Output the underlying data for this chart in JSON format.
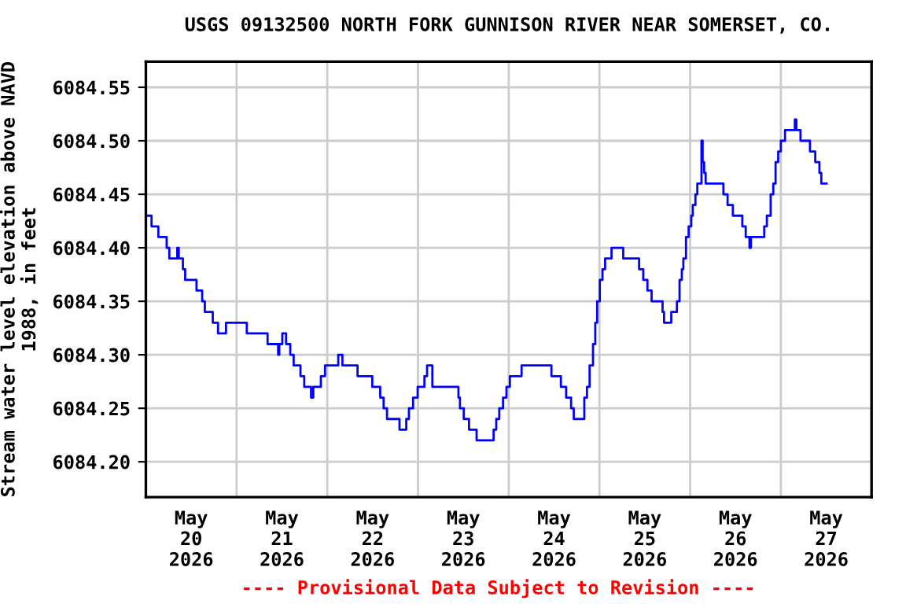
{
  "chart_data": {
    "type": "step",
    "title": "USGS 09132500 NORTH FORK GUNNISON RIVER NEAR SOMERSET, CO.",
    "ylabel": "Stream water level elevation above NAVD\n1988, in feet",
    "annotations": [
      "---- Provisional Data Subject to Revision ----"
    ],
    "grid": true,
    "legend": false,
    "xlim": [
      "2026-05-20T00:00",
      "2026-05-28T00:00"
    ],
    "xticks": [
      {
        "value": "2026-05-20T12:00",
        "label": "May\n20\n2026"
      },
      {
        "value": "2026-05-21T00:00",
        "label": null
      },
      {
        "value": "2026-05-21T12:00",
        "label": "May\n21\n2026"
      },
      {
        "value": "2026-05-22T00:00",
        "label": null
      },
      {
        "value": "2026-05-22T12:00",
        "label": "May\n22\n2026"
      },
      {
        "value": "2026-05-23T00:00",
        "label": null
      },
      {
        "value": "2026-05-23T12:00",
        "label": "May\n23\n2026"
      },
      {
        "value": "2026-05-24T00:00",
        "label": null
      },
      {
        "value": "2026-05-24T12:00",
        "label": "May\n24\n2026"
      },
      {
        "value": "2026-05-25T00:00",
        "label": null
      },
      {
        "value": "2026-05-25T12:00",
        "label": "May\n25\n2026"
      },
      {
        "value": "2026-05-26T00:00",
        "label": null
      },
      {
        "value": "2026-05-26T12:00",
        "label": "May\n26\n2026"
      },
      {
        "value": "2026-05-27T00:00",
        "label": null
      },
      {
        "value": "2026-05-27T12:00",
        "label": "May\n27\n2026"
      }
    ],
    "ylim": [
      6084.167,
      6084.574
    ],
    "yticks": [
      {
        "value": 6084.2,
        "label": "6084.20"
      },
      {
        "value": 6084.25,
        "label": "6084.25"
      },
      {
        "value": 6084.3,
        "label": "6084.30"
      },
      {
        "value": 6084.35,
        "label": "6084.35"
      },
      {
        "value": 6084.4,
        "label": "6084.40"
      },
      {
        "value": 6084.45,
        "label": "6084.45"
      },
      {
        "value": 6084.5,
        "label": "6084.50"
      },
      {
        "value": 6084.55,
        "label": "6084.55"
      }
    ],
    "series": [
      {
        "color": "#0000ff",
        "x": [
          "2026-05-20T00:00",
          "2026-05-20T01:30",
          "2026-05-20T03:18",
          "2026-05-20T05:30",
          "2026-05-20T06:12",
          "2026-05-20T08:18",
          "2026-05-20T08:42",
          "2026-05-20T09:48",
          "2026-05-20T10:24",
          "2026-05-20T13:24",
          "2026-05-20T14:54",
          "2026-05-20T15:36",
          "2026-05-20T17:42",
          "2026-05-20T19:06",
          "2026-05-20T21:12",
          "2026-05-20T21:54",
          "2026-05-21T02:42",
          "2026-05-21T03:06",
          "2026-05-21T08:12",
          "2026-05-21T11:00",
          "2026-05-21T11:18",
          "2026-05-21T12:06",
          "2026-05-21T13:06",
          "2026-05-21T14:12",
          "2026-05-21T15:06",
          "2026-05-21T16:54",
          "2026-05-21T17:54",
          "2026-05-21T19:42",
          "2026-05-21T20:18",
          "2026-05-21T22:18",
          "2026-05-21T23:24",
          "2026-05-22T02:54",
          "2026-05-22T04:00",
          "2026-05-22T08:00",
          "2026-05-22T08:24",
          "2026-05-22T11:54",
          "2026-05-22T14:00",
          "2026-05-22T14:54",
          "2026-05-22T15:48",
          "2026-05-22T19:06",
          "2026-05-22T20:54",
          "2026-05-22T21:36",
          "2026-05-22T22:42",
          "2026-05-22T23:54",
          "2026-05-23T01:42",
          "2026-05-23T02:24",
          "2026-05-23T03:48",
          "2026-05-23T10:42",
          "2026-05-23T11:06",
          "2026-05-23T12:06",
          "2026-05-23T13:30",
          "2026-05-23T15:30",
          "2026-05-23T17:12",
          "2026-05-23T20:00",
          "2026-05-23T20:42",
          "2026-05-23T21:30",
          "2026-05-23T22:30",
          "2026-05-23T23:24",
          "2026-05-24T00:18",
          "2026-05-24T01:12",
          "2026-05-24T02:48",
          "2026-05-24T03:24",
          "2026-05-24T11:18",
          "2026-05-24T13:48",
          "2026-05-24T15:12",
          "2026-05-24T16:30",
          "2026-05-24T17:12",
          "2026-05-24T19:36",
          "2026-05-24T20:00",
          "2026-05-24T20:42",
          "2026-05-24T21:24",
          "2026-05-24T22:18",
          "2026-05-24T22:54",
          "2026-05-24T23:24",
          "2026-05-25T00:06",
          "2026-05-25T00:48",
          "2026-05-25T01:30",
          "2026-05-25T03:12",
          "2026-05-25T06:18",
          "2026-05-25T09:06",
          "2026-05-25T10:30",
          "2026-05-25T11:36",
          "2026-05-25T12:42",
          "2026-05-25T13:48",
          "2026-05-25T16:42",
          "2026-05-25T17:06",
          "2026-05-25T19:00",
          "2026-05-25T20:30",
          "2026-05-25T21:12",
          "2026-05-25T21:48",
          "2026-05-25T22:12",
          "2026-05-25T22:54",
          "2026-05-25T23:36",
          "2026-05-26T00:18",
          "2026-05-26T00:42",
          "2026-05-26T01:24",
          "2026-05-26T01:54",
          "2026-05-26T03:00",
          "2026-05-26T03:18",
          "2026-05-26T03:42",
          "2026-05-26T04:06",
          "2026-05-26T08:48",
          "2026-05-26T09:54",
          "2026-05-26T11:18",
          "2026-05-26T13:48",
          "2026-05-26T14:42",
          "2026-05-26T15:42",
          "2026-05-26T16:06",
          "2026-05-26T19:36",
          "2026-05-26T20:18",
          "2026-05-26T21:18",
          "2026-05-26T22:00",
          "2026-05-26T22:36",
          "2026-05-26T23:18",
          "2026-05-27T00:00",
          "2026-05-27T01:06",
          "2026-05-27T03:42",
          "2026-05-27T04:06",
          "2026-05-27T05:12",
          "2026-05-27T07:42",
          "2026-05-27T09:06",
          "2026-05-27T10:12",
          "2026-05-27T10:42",
          "2026-05-27T12:06"
        ],
        "values": [
          6084.43,
          6084.42,
          6084.41,
          6084.4,
          6084.39,
          6084.4,
          6084.39,
          6084.38,
          6084.37,
          6084.36,
          6084.35,
          6084.34,
          6084.33,
          6084.32,
          6084.33,
          6084.33,
          6084.32,
          6084.32,
          6084.31,
          6084.3,
          6084.31,
          6084.32,
          6084.31,
          6084.3,
          6084.29,
          6084.28,
          6084.27,
          6084.26,
          6084.27,
          6084.28,
          6084.29,
          6084.3,
          6084.29,
          6084.28,
          6084.28,
          6084.27,
          6084.26,
          6084.25,
          6084.24,
          6084.23,
          6084.24,
          6084.25,
          6084.26,
          6084.27,
          6084.28,
          6084.29,
          6084.27,
          6084.26,
          6084.25,
          6084.24,
          6084.23,
          6084.22,
          6084.22,
          6084.23,
          6084.24,
          6084.25,
          6084.26,
          6084.27,
          6084.28,
          6084.28,
          6084.28,
          6084.29,
          6084.28,
          6084.27,
          6084.26,
          6084.25,
          6084.24,
          6084.24,
          6084.26,
          6084.27,
          6084.29,
          6084.31,
          6084.33,
          6084.35,
          6084.37,
          6084.38,
          6084.39,
          6084.4,
          6084.39,
          6084.39,
          6084.38,
          6084.37,
          6084.36,
          6084.35,
          6084.34,
          6084.33,
          6084.34,
          6084.35,
          6084.37,
          6084.38,
          6084.39,
          6084.41,
          6084.42,
          6084.43,
          6084.44,
          6084.45,
          6084.46,
          6084.5,
          6084.48,
          6084.47,
          6084.46,
          6084.45,
          6084.44,
          6084.43,
          6084.42,
          6084.41,
          6084.4,
          6084.41,
          6084.42,
          6084.43,
          6084.45,
          6084.46,
          6084.48,
          6084.49,
          6084.5,
          6084.51,
          6084.52,
          6084.51,
          6084.5,
          6084.49,
          6084.48,
          6084.47,
          6084.46,
          6084.46
        ]
      }
    ]
  }
}
